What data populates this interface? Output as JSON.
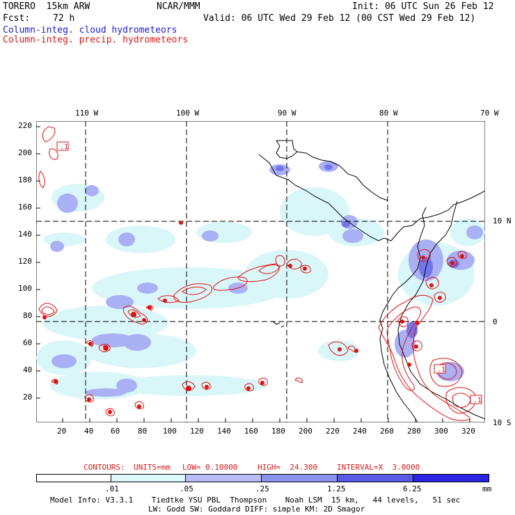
{
  "header": {
    "model_line": "TORERO  15km ARW",
    "org": "NCAR/MMM",
    "init": "Init: 06 UTC Sun 26 Feb 12",
    "fcst_label": "Fcst:",
    "fcst_value": "72 h",
    "valid": "Valid: 06 UTC Wed 29 Feb 12 (00 CST Wed 29 Feb 12)",
    "legend_cloud": "Column-integ. cloud hydrometeors",
    "legend_precip": "Column-integ. precip. hydrometeors"
  },
  "axes": {
    "top_lon": [
      "110 W",
      "100 W",
      "90 W",
      "80 W",
      "70 W"
    ],
    "right_lat": [
      "10 N",
      "0",
      "10 S"
    ],
    "left_y": [
      "220",
      "200",
      "180",
      "160",
      "140",
      "120",
      "100",
      "80",
      "60",
      "40",
      "20"
    ],
    "bottom_x": [
      "20",
      "40",
      "60",
      "80",
      "100",
      "120",
      "140",
      "160",
      "180",
      "200",
      "220",
      "240",
      "260",
      "280",
      "300",
      "320"
    ]
  },
  "contour_labels": [
    ".1",
    ".1",
    ".1"
  ],
  "contour_info": {
    "contours": "CONTOURS:",
    "units": "UNITS=mm",
    "low": "LOW= 0.10000",
    "high": "HIGH=  24.300",
    "interval": "INTERVAL=X  3.0000"
  },
  "colorbar": {
    "labels": [
      ".01",
      ".05",
      ".25",
      "1.25",
      "6.25"
    ],
    "unit": "mm",
    "colors": [
      "#ffffff",
      "#ddf8fa",
      "#b8bdf6",
      "#8c92f0",
      "#5a5ae8",
      "#2b23e6"
    ]
  },
  "footer": {
    "line1": "Model Info: V3.3.1    Tiedtke YSU PBL  Thompson    Noah LSM  15 km,   44 levels,   51 sec",
    "line2": "LW: Godd SW: Goddard DIFF: simple KM: 2D Smagor"
  },
  "colors": {
    "cloud_light": "#d9f6f8",
    "cloud_mid": "#aab0f4",
    "cloud_dark": "#6f6fe8",
    "precip": "#e01010"
  }
}
